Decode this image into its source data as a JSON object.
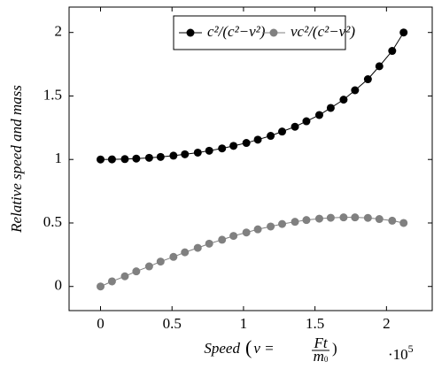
{
  "chart_data": {
    "type": "line",
    "x_label": "Speed",
    "x_label_formula": {
      "lhs": "v =",
      "num": "Ft",
      "den": "m",
      "den_sub": "0"
    },
    "x_multiplier": {
      "base": "·10",
      "exp": "5"
    },
    "y_label": "Relative speed and mass",
    "x": [
      0,
      0.08,
      0.17,
      0.25,
      0.34,
      0.42,
      0.51,
      0.59,
      0.68,
      0.76,
      0.85,
      0.93,
      1.02,
      1.1,
      1.19,
      1.27,
      1.36,
      1.44,
      1.53,
      1.61,
      1.7,
      1.78,
      1.87,
      1.95,
      2.04,
      2.12
    ],
    "series": [
      {
        "name": "c²/(c²−v²)",
        "color": "#000000",
        "values": [
          1,
          1.001,
          1.003,
          1.007,
          1.013,
          1.02,
          1.03,
          1.041,
          1.054,
          1.069,
          1.087,
          1.107,
          1.13,
          1.156,
          1.186,
          1.22,
          1.258,
          1.301,
          1.35,
          1.406,
          1.471,
          1.545,
          1.632,
          1.734,
          1.855,
          2
        ]
      },
      {
        "name": "vc²/(c²−v²)",
        "color": "#808080",
        "values": [
          0,
          0.04,
          0.08,
          0.119,
          0.158,
          0.196,
          0.233,
          0.269,
          0.304,
          0.337,
          0.368,
          0.398,
          0.425,
          0.45,
          0.472,
          0.492,
          0.509,
          0.523,
          0.534,
          0.541,
          0.544,
          0.544,
          0.54,
          0.531,
          0.518,
          0.5
        ]
      }
    ],
    "xlim": [
      -0.22,
      2.32
    ],
    "ylim": [
      -0.19,
      2.2
    ],
    "xticks": [
      0,
      0.5,
      1,
      1.5,
      2
    ],
    "yticks": [
      0,
      0.5,
      1,
      1.5,
      2
    ],
    "legend_position": "top-center",
    "grid": false
  }
}
